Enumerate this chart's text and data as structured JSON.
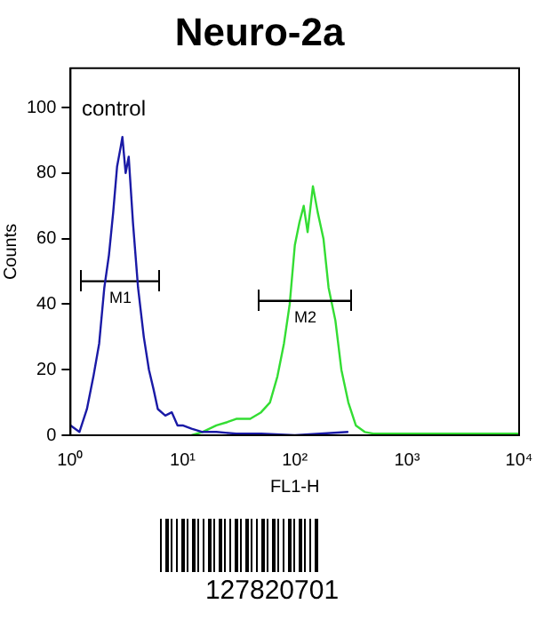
{
  "chart_data": {
    "type": "line",
    "title": "Neuro-2a",
    "xlabel": "FL1-H",
    "ylabel": "Counts",
    "log": "x",
    "grid": false,
    "legend": false,
    "marker": "none",
    "line_style": "solid",
    "xlim": [
      1,
      10000
    ],
    "xticks": [
      {
        "value": 1,
        "label": "10⁰"
      },
      {
        "value": 10,
        "label": "10¹"
      },
      {
        "value": 100,
        "label": "10²"
      },
      {
        "value": 1000,
        "label": "10³"
      },
      {
        "value": 10000,
        "label": "10⁴"
      }
    ],
    "ylim": [
      0,
      112
    ],
    "yticks": [
      0,
      20,
      40,
      60,
      80,
      100
    ],
    "series": [
      {
        "color": "#1a1aa6",
        "x": [
          1,
          1.2,
          1.4,
          1.6,
          1.8,
          2,
          2.2,
          2.4,
          2.6,
          2.8,
          2.9,
          3.1,
          3.3,
          3.6,
          4,
          4.5,
          5,
          5.5,
          6,
          7,
          8,
          9,
          10,
          12,
          15,
          20,
          30,
          50,
          100,
          300
        ],
        "values": [
          3,
          1,
          8,
          18,
          28,
          45,
          55,
          68,
          82,
          88,
          91,
          80,
          85,
          65,
          45,
          30,
          20,
          14,
          8,
          6,
          7,
          3,
          3,
          2,
          1,
          1,
          0.5,
          0.5,
          0,
          1
        ]
      },
      {
        "name": "M1",
        "color": "#000000",
        "x": [
          1.25,
          6.2
        ],
        "values": [
          47,
          47
        ]
      },
      {
        "name": "M2",
        "color": "#000000",
        "x": [
          48,
          320
        ],
        "values": [
          41,
          41
        ]
      },
      {
        "color": "#33dd33",
        "x": [
          12,
          15,
          20,
          25,
          30,
          40,
          50,
          60,
          70,
          80,
          90,
          100,
          110,
          120,
          130,
          145,
          160,
          180,
          200,
          230,
          260,
          300,
          350,
          420,
          500,
          1000,
          10000
        ],
        "values": [
          0,
          1,
          3,
          4,
          5,
          5,
          7,
          10,
          18,
          28,
          40,
          58,
          65,
          70,
          62,
          76,
          68,
          60,
          45,
          35,
          20,
          10,
          3,
          1,
          0.5,
          0.5,
          0.5
        ]
      }
    ],
    "annotations": [
      "control",
      "127820701"
    ]
  }
}
